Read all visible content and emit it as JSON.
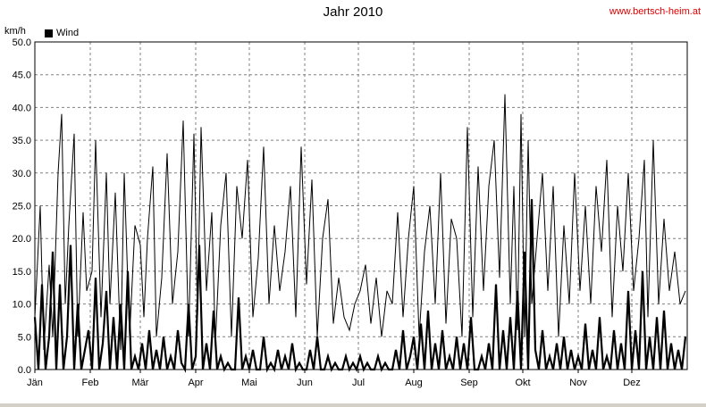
{
  "chart_data": {
    "type": "line",
    "title": "Jahr 2010",
    "watermark": "www.bertsch-heim.at",
    "ylabel": "km/h",
    "ylim": [
      0,
      50
    ],
    "yticks": [
      "0.0",
      "5.0",
      "10.0",
      "15.0",
      "20.0",
      "25.0",
      "30.0",
      "35.0",
      "40.0",
      "45.0",
      "50.0"
    ],
    "xlim": [
      0,
      365
    ],
    "months": [
      {
        "label": "Jän",
        "day": 0
      },
      {
        "label": "Feb",
        "day": 31
      },
      {
        "label": "Mär",
        "day": 59
      },
      {
        "label": "Apr",
        "day": 90
      },
      {
        "label": "Mai",
        "day": 120
      },
      {
        "label": "Jun",
        "day": 151
      },
      {
        "label": "Jul",
        "day": 181
      },
      {
        "label": "Aug",
        "day": 212
      },
      {
        "label": "Sep",
        "day": 243
      },
      {
        "label": "Okt",
        "day": 273
      },
      {
        "label": "Nov",
        "day": 304
      },
      {
        "label": "Dez",
        "day": 334
      }
    ],
    "grid": true,
    "legend_position": "top-left",
    "colors": {
      "series": "#000000",
      "grid": "#808080",
      "title": "#000000",
      "watermark": "#e00000"
    },
    "series": [
      {
        "name": "Wind",
        "role": "peak",
        "x": [
          0,
          3,
          5,
          8,
          10,
          13,
          15,
          17,
          19,
          22,
          24,
          27,
          29,
          32,
          34,
          37,
          40,
          42,
          45,
          48,
          50,
          53,
          56,
          59,
          61,
          63,
          66,
          68,
          71,
          74,
          77,
          80,
          83,
          86,
          89,
          91,
          93,
          96,
          99,
          101,
          104,
          107,
          110,
          113,
          116,
          119,
          122,
          125,
          128,
          131,
          134,
          137,
          140,
          143,
          146,
          149,
          152,
          155,
          158,
          161,
          164,
          167,
          170,
          173,
          176,
          179,
          182,
          185,
          188,
          191,
          194,
          197,
          200,
          203,
          206,
          209,
          212,
          215,
          218,
          221,
          224,
          227,
          230,
          233,
          236,
          239,
          242,
          245,
          248,
          251,
          254,
          257,
          260,
          263,
          266,
          268,
          270,
          272,
          274,
          276,
          278,
          281,
          284,
          287,
          290,
          293,
          296,
          299,
          302,
          305,
          308,
          311,
          314,
          317,
          320,
          323,
          326,
          329,
          332,
          335,
          338,
          341,
          343,
          346,
          349,
          352,
          355,
          358,
          361,
          364
        ],
        "y": [
          8,
          25,
          3,
          16,
          5,
          30,
          39,
          10,
          22,
          36,
          5,
          24,
          12,
          15,
          35,
          8,
          30,
          10,
          27,
          3,
          30,
          5,
          22,
          19,
          8,
          20,
          31,
          5,
          14,
          33,
          10,
          18,
          38,
          5,
          36,
          8,
          37,
          12,
          24,
          4,
          22,
          30,
          5,
          28,
          20,
          32,
          8,
          17,
          34,
          10,
          22,
          12,
          18,
          28,
          8,
          34,
          13,
          29,
          5,
          20,
          26,
          7,
          14,
          8,
          6,
          10,
          12,
          16,
          7,
          14,
          5,
          12,
          10,
          24,
          8,
          20,
          28,
          5,
          18,
          25,
          10,
          30,
          7,
          23,
          20,
          5,
          37,
          8,
          31,
          12,
          28,
          35,
          14,
          42,
          10,
          28,
          6,
          39,
          5,
          35,
          10,
          20,
          30,
          12,
          28,
          5,
          22,
          10,
          30,
          12,
          25,
          10,
          28,
          18,
          32,
          8,
          25,
          15,
          30,
          12,
          20,
          32,
          8,
          35,
          10,
          23,
          12,
          18,
          10,
          12
        ]
      },
      {
        "name": "",
        "role": "mean",
        "x": [
          0,
          2,
          4,
          6,
          8,
          10,
          12,
          14,
          16,
          18,
          20,
          22,
          24,
          26,
          28,
          30,
          32,
          34,
          36,
          38,
          40,
          42,
          44,
          46,
          48,
          50,
          52,
          54,
          56,
          58,
          60,
          62,
          64,
          66,
          68,
          70,
          72,
          74,
          76,
          78,
          80,
          82,
          84,
          86,
          88,
          90,
          92,
          94,
          96,
          98,
          100,
          102,
          104,
          106,
          108,
          110,
          112,
          114,
          116,
          118,
          120,
          122,
          124,
          126,
          128,
          130,
          132,
          134,
          136,
          138,
          140,
          142,
          144,
          146,
          148,
          150,
          152,
          154,
          156,
          158,
          160,
          162,
          164,
          166,
          168,
          170,
          172,
          174,
          176,
          178,
          180,
          182,
          184,
          186,
          188,
          190,
          192,
          194,
          196,
          198,
          200,
          202,
          204,
          206,
          208,
          210,
          212,
          214,
          216,
          218,
          220,
          222,
          224,
          226,
          228,
          230,
          232,
          234,
          236,
          238,
          240,
          242,
          244,
          246,
          248,
          250,
          252,
          254,
          256,
          258,
          260,
          262,
          264,
          266,
          268,
          270,
          272,
          274,
          276,
          278,
          280,
          282,
          284,
          286,
          288,
          290,
          292,
          294,
          296,
          298,
          300,
          302,
          304,
          306,
          308,
          310,
          312,
          314,
          316,
          318,
          320,
          322,
          324,
          326,
          328,
          330,
          332,
          334,
          336,
          338,
          340,
          342,
          344,
          346,
          348,
          350,
          352,
          354,
          356,
          358,
          360,
          362,
          364
        ],
        "y": [
          8,
          0,
          13,
          0,
          5,
          18,
          0,
          13,
          0,
          5,
          19,
          0,
          10,
          0,
          3,
          6,
          0,
          14,
          0,
          4,
          12,
          0,
          8,
          0,
          10,
          0,
          15,
          0,
          2,
          0,
          4,
          0,
          6,
          0,
          3,
          0,
          5,
          0,
          2,
          0,
          6,
          1,
          0,
          10,
          0,
          2,
          19,
          0,
          4,
          0,
          9,
          0,
          2,
          0,
          1,
          0,
          0,
          11,
          0,
          2,
          0,
          3,
          0,
          0,
          5,
          0,
          1,
          0,
          3,
          0,
          2,
          0,
          4,
          0,
          1,
          0,
          0,
          3,
          0,
          5,
          0,
          0,
          2,
          0,
          1,
          0,
          0,
          2,
          0,
          1,
          0,
          2,
          0,
          1,
          0,
          0,
          2,
          0,
          1,
          0,
          0,
          3,
          0,
          6,
          0,
          2,
          5,
          0,
          7,
          0,
          9,
          0,
          4,
          0,
          6,
          0,
          2,
          0,
          5,
          0,
          4,
          0,
          8,
          0,
          0,
          2,
          0,
          4,
          0,
          13,
          0,
          6,
          0,
          8,
          0,
          12,
          0,
          18,
          0,
          26,
          3,
          0,
          6,
          0,
          2,
          0,
          4,
          0,
          5,
          0,
          3,
          0,
          2,
          0,
          7,
          0,
          3,
          0,
          8,
          0,
          2,
          0,
          6,
          0,
          4,
          0,
          12,
          0,
          6,
          0,
          15,
          0,
          5,
          0,
          8,
          0,
          9,
          0,
          4,
          0,
          3,
          0,
          5
        ]
      }
    ]
  }
}
